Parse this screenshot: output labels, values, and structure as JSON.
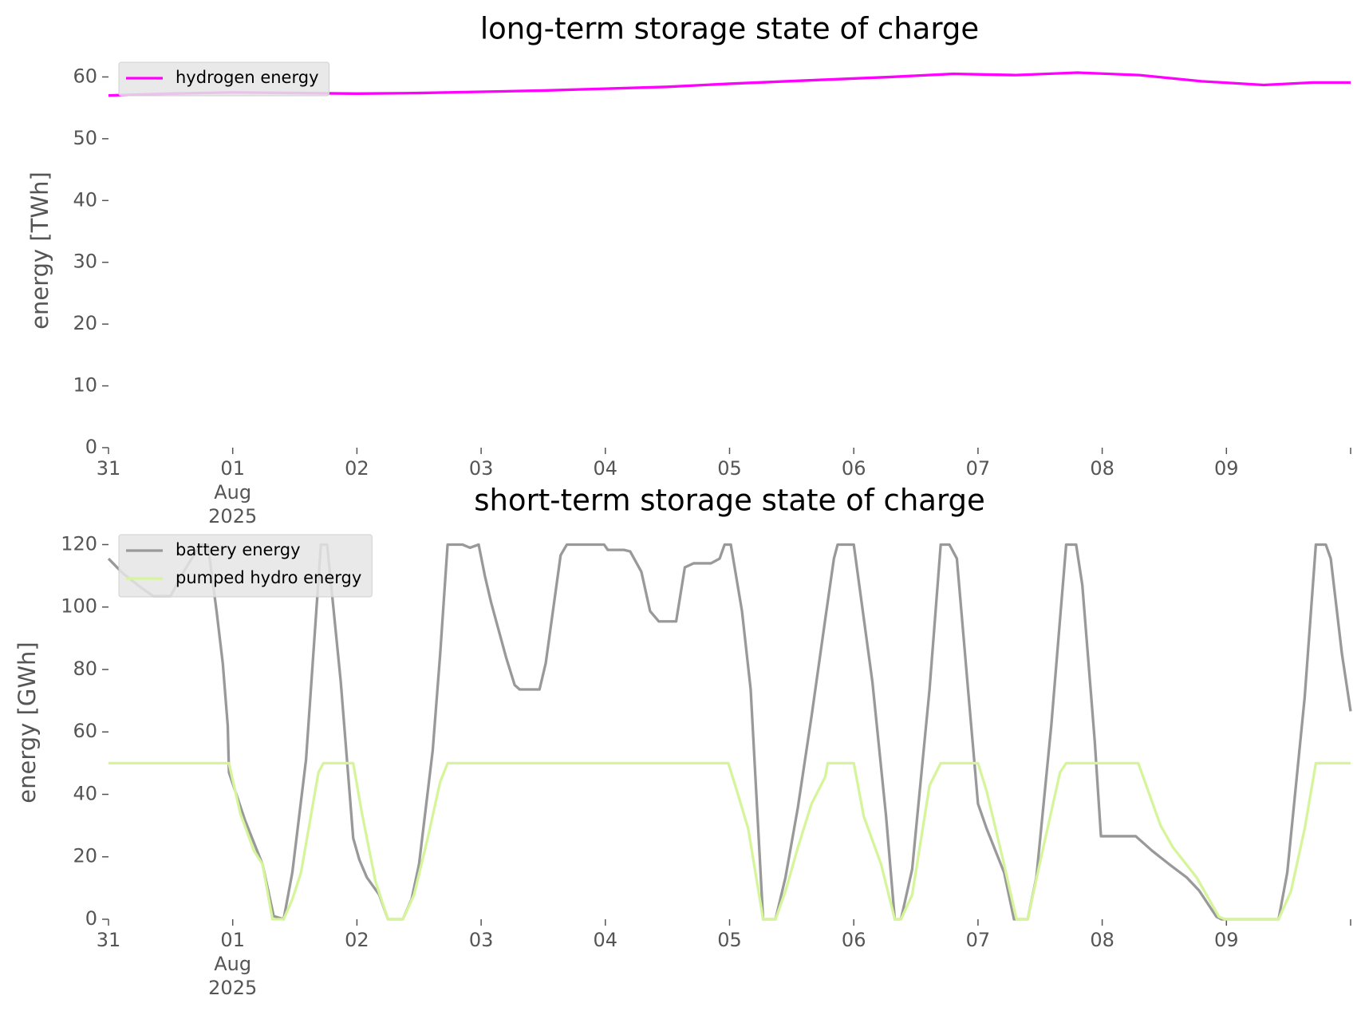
{
  "chart_data": [
    {
      "type": "line",
      "title": "long-term storage state of charge",
      "ylabel": "energy [TWh]",
      "legend": "upper left",
      "xlim": [
        0,
        10
      ],
      "ylim": [
        0,
        63.8
      ],
      "yticks": [
        0,
        10,
        20,
        30,
        40,
        50,
        60
      ],
      "xticks": [
        {
          "value": 0,
          "label": "31"
        },
        {
          "value": 1,
          "label": "01\nAug\n2025"
        },
        {
          "value": 2,
          "label": "02"
        },
        {
          "value": 3,
          "label": "03"
        },
        {
          "value": 4,
          "label": "04"
        },
        {
          "value": 5,
          "label": "05"
        },
        {
          "value": 6,
          "label": "06"
        },
        {
          "value": 7,
          "label": "07"
        },
        {
          "value": 8,
          "label": "08"
        },
        {
          "value": 9,
          "label": "09"
        },
        {
          "value": 10,
          "label": null
        }
      ],
      "series": [
        {
          "name": "hydrogen energy",
          "color": "#ff00ff",
          "x": [
            0,
            0.5,
            1,
            1.5,
            2,
            2.5,
            3,
            3.5,
            4,
            4.5,
            5,
            5.7,
            6.3,
            6.8,
            7.3,
            7.8,
            8.3,
            8.8,
            9.3,
            9.7,
            10
          ],
          "values": [
            57,
            57.3,
            57.5,
            57.4,
            57.3,
            57.4,
            57.6,
            57.8,
            58.1,
            58.4,
            58.9,
            59.5,
            60,
            60.5,
            60.3,
            60.7,
            60.3,
            59.3,
            58.7,
            59.1,
            59.1
          ]
        }
      ]
    },
    {
      "type": "line",
      "title": "short-term storage state of charge",
      "ylabel": "energy [GWh]",
      "legend": "upper left",
      "xlim": [
        0,
        10
      ],
      "ylim": [
        0,
        126
      ],
      "yticks": [
        0,
        20,
        40,
        60,
        80,
        100,
        120
      ],
      "xticks": [
        {
          "value": 0,
          "label": "31"
        },
        {
          "value": 1,
          "label": "01\nAug\n2025"
        },
        {
          "value": 2,
          "label": "02"
        },
        {
          "value": 3,
          "label": "03"
        },
        {
          "value": 4,
          "label": "04"
        },
        {
          "value": 5,
          "label": "05"
        },
        {
          "value": 6,
          "label": "06"
        },
        {
          "value": 7,
          "label": "07"
        },
        {
          "value": 8,
          "label": "08"
        },
        {
          "value": 9,
          "label": "09"
        },
        {
          "value": 10,
          "label": null
        }
      ],
      "series": [
        {
          "name": "battery energy",
          "color": "#999999",
          "x": [
            0,
            0.11,
            0.25,
            0.36,
            0.5,
            0.6,
            0.74,
            0.8,
            0.87,
            0.92,
            0.96,
            0.97,
            1.1,
            1.24,
            1.33,
            1.41,
            1.48,
            1.59,
            1.71,
            1.76,
            1.87,
            1.97,
            2.02,
            2.08,
            2.18,
            2.25,
            2.37,
            2.44,
            2.5,
            2.61,
            2.67,
            2.73,
            2.85,
            2.91,
            2.98,
            3.03,
            3.08,
            3.2,
            3.27,
            3.31,
            3.47,
            3.52,
            3.64,
            3.69,
            3.99,
            4.02,
            4.15,
            4.2,
            4.29,
            4.36,
            4.43,
            4.57,
            4.64,
            4.71,
            4.85,
            4.92,
            4.96,
            5.01,
            5.1,
            5.17,
            5.27,
            5.37,
            5.45,
            5.55,
            5.66,
            5.77,
            5.84,
            5.87,
            6,
            6.15,
            6.26,
            6.33,
            6.38,
            6.47,
            6.61,
            6.7,
            6.77,
            6.83,
            6.92,
            7,
            7.07,
            7.21,
            7.29,
            7.4,
            7.47,
            7.59,
            7.71,
            7.79,
            7.84,
            7.94,
            7.99,
            8.27,
            8.4,
            8.54,
            8.68,
            8.78,
            8.92,
            8.96,
            9.42,
            9.49,
            9.63,
            9.72,
            9.8,
            9.84,
            9.93,
            10
          ],
          "values": [
            115.5,
            111,
            106.6,
            103.5,
            103.5,
            111,
            120,
            120,
            98.7,
            82,
            62,
            47,
            31.6,
            17.6,
            1,
            0,
            15,
            51,
            120,
            120,
            76,
            26,
            19,
            13.4,
            7.8,
            0,
            0,
            6.4,
            17.6,
            54,
            84.8,
            120,
            120,
            119,
            120,
            110,
            101.5,
            84,
            75,
            73.6,
            73.6,
            82,
            116.6,
            120,
            120,
            118.3,
            118.3,
            117.8,
            111.3,
            98.7,
            95.4,
            95.4,
            112.7,
            114,
            114,
            115.5,
            120,
            120,
            98.7,
            73.6,
            0,
            0,
            13.4,
            35.8,
            65,
            96,
            115.5,
            120,
            120,
            76,
            33,
            0,
            0,
            16,
            73.6,
            120,
            120,
            115.5,
            73.6,
            37,
            29,
            15,
            0,
            0,
            13.4,
            62,
            120,
            120,
            107,
            57,
            26.6,
            26.6,
            22,
            17.6,
            13.4,
            9.2,
            0.8,
            0,
            0,
            15,
            71,
            120,
            120,
            115.5,
            85,
            66.6
          ]
        },
        {
          "name": "pumped hydro energy",
          "color": "#d6f59b",
          "x": [
            0,
            0.97,
            1.06,
            1.17,
            1.24,
            1.32,
            1.41,
            1.48,
            1.55,
            1.69,
            1.73,
            1.97,
            2.04,
            2.15,
            2.25,
            2.37,
            2.46,
            2.57,
            2.67,
            2.73,
            4.99,
            5.06,
            5.15,
            5.27,
            5.37,
            5.45,
            5.55,
            5.66,
            5.77,
            5.79,
            6,
            6.08,
            6.22,
            6.33,
            6.38,
            6.47,
            6.61,
            6.7,
            7,
            7.07,
            7.21,
            7.31,
            7.4,
            7.52,
            7.66,
            7.71,
            8.29,
            8.38,
            8.47,
            8.57,
            8.76,
            8.94,
            8.99,
            9.42,
            9.52,
            9.63,
            9.72,
            10
          ],
          "values": [
            50,
            50,
            34,
            22,
            17.6,
            0,
            0,
            6.4,
            15,
            47,
            50,
            50,
            34,
            12,
            0,
            0,
            7.8,
            26,
            44,
            50,
            50,
            41,
            29,
            0,
            0,
            9,
            23,
            37,
            45.6,
            50,
            50,
            33,
            17.6,
            0,
            0,
            7.8,
            42.8,
            50,
            50,
            41,
            17.6,
            0,
            0,
            22,
            47,
            50,
            50,
            40,
            30,
            23,
            13.4,
            0.8,
            0,
            0,
            9,
            29,
            50,
            50
          ]
        }
      ]
    }
  ]
}
